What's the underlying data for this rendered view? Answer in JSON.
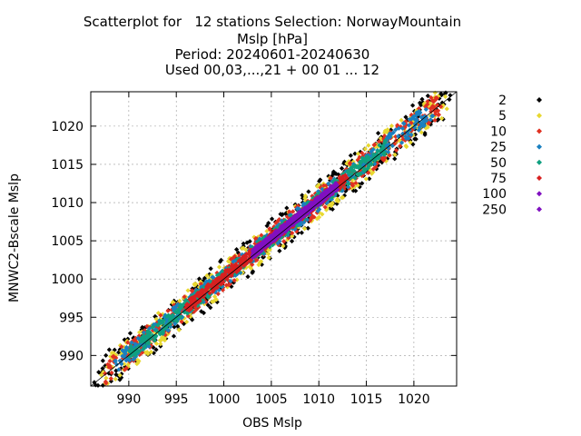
{
  "chart_data": {
    "type": "scatter",
    "title_lines": [
      "Scatterplot for   12 stations Selection: NorwayMountain",
      "Mslp [hPa]",
      "Period: 20240601-20240630",
      "Used 00,03,...,21 + 00 01 ... 12"
    ],
    "xlabel": "OBS Mslp",
    "ylabel": "MNWC2-Bscale Mslp",
    "xlim": [
      986,
      1024.5
    ],
    "ylim": [
      986,
      1024.5
    ],
    "x_ticks": [
      990,
      995,
      1000,
      1005,
      1010,
      1015,
      1020
    ],
    "y_ticks": [
      990,
      995,
      1000,
      1005,
      1010,
      1015,
      1020
    ],
    "grid": true,
    "diagonal_line": true,
    "legend_placement": "right",
    "series": [
      {
        "name": "2",
        "color": "#000000",
        "halfwidth": 2.6,
        "range": [
          986.3,
          1024.0
        ]
      },
      {
        "name": "5",
        "color": "#e8d830",
        "halfwidth": 2.2,
        "range": [
          987.0,
          1023.5
        ]
      },
      {
        "name": "10",
        "color": "#e03020",
        "halfwidth": 1.7,
        "range": [
          987.5,
          1023.0
        ]
      },
      {
        "name": "25",
        "color": "#1a80c0",
        "halfwidth": 1.3,
        "range": [
          988.5,
          1022.0
        ]
      },
      {
        "name": "50",
        "color": "#10a080",
        "halfwidth": 1.0,
        "range": [
          990.0,
          1017.0
        ]
      },
      {
        "name": "75",
        "color": "#d82020",
        "halfwidth": 0.7,
        "range": [
          996.0,
          1013.0
        ]
      },
      {
        "name": "100",
        "color": "#8010c0",
        "halfwidth": 0.55,
        "range": [
          1003.0,
          1012.0
        ]
      },
      {
        "name": "250",
        "color": "#8010c0",
        "halfwidth": 0.35,
        "range": [
          1006.0,
          1011.0
        ]
      }
    ]
  }
}
